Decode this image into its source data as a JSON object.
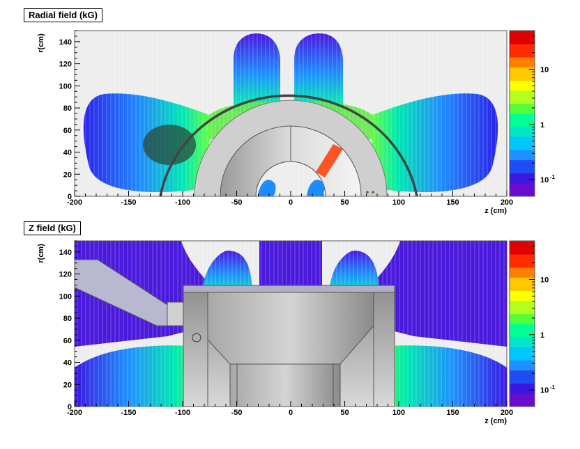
{
  "chart_data": [
    {
      "type": "heatmap",
      "title": "Radial field (kG)",
      "xlabel": "z (cm)",
      "ylabel": "r(cm)",
      "xlim": [
        -200,
        200
      ],
      "ylim": [
        0,
        150
      ],
      "x_ticks": [
        "-200",
        "-150",
        "-100",
        "-50",
        "0",
        "50",
        "100",
        "150",
        "200"
      ],
      "y_ticks": [
        "0",
        "20",
        "40",
        "60",
        "80",
        "100",
        "120",
        "140"
      ],
      "color_scale": "log",
      "colorbar_ticks": [
        "10",
        "1",
        "10"
      ],
      "colorbar_exponent": "-1",
      "grid": false
    },
    {
      "type": "heatmap",
      "title": "Z field (kG)",
      "xlabel": "z (cm)",
      "ylabel": "r(cm)",
      "xlim": [
        -200,
        200
      ],
      "ylim": [
        0,
        150
      ],
      "x_ticks": [
        "-200",
        "-150",
        "-100",
        "-50",
        "0",
        "50",
        "100",
        "150",
        "200"
      ],
      "y_ticks": [
        "0",
        "20",
        "40",
        "60",
        "80",
        "100",
        "120",
        "140"
      ],
      "color_scale": "log",
      "colorbar_ticks": [
        "10",
        "1",
        "10"
      ],
      "colorbar_exponent": "-1",
      "grid": false
    }
  ],
  "colors": {
    "background": "#ededed",
    "colormap": [
      "#6a0dd0",
      "#3a18e0",
      "#1f4cf5",
      "#1e90ff",
      "#00c8ff",
      "#00e6c8",
      "#00ff96",
      "#52ff3a",
      "#b4ff1e",
      "#ffff00",
      "#ffc800",
      "#ff8000",
      "#ff2a00",
      "#e00000"
    ]
  }
}
